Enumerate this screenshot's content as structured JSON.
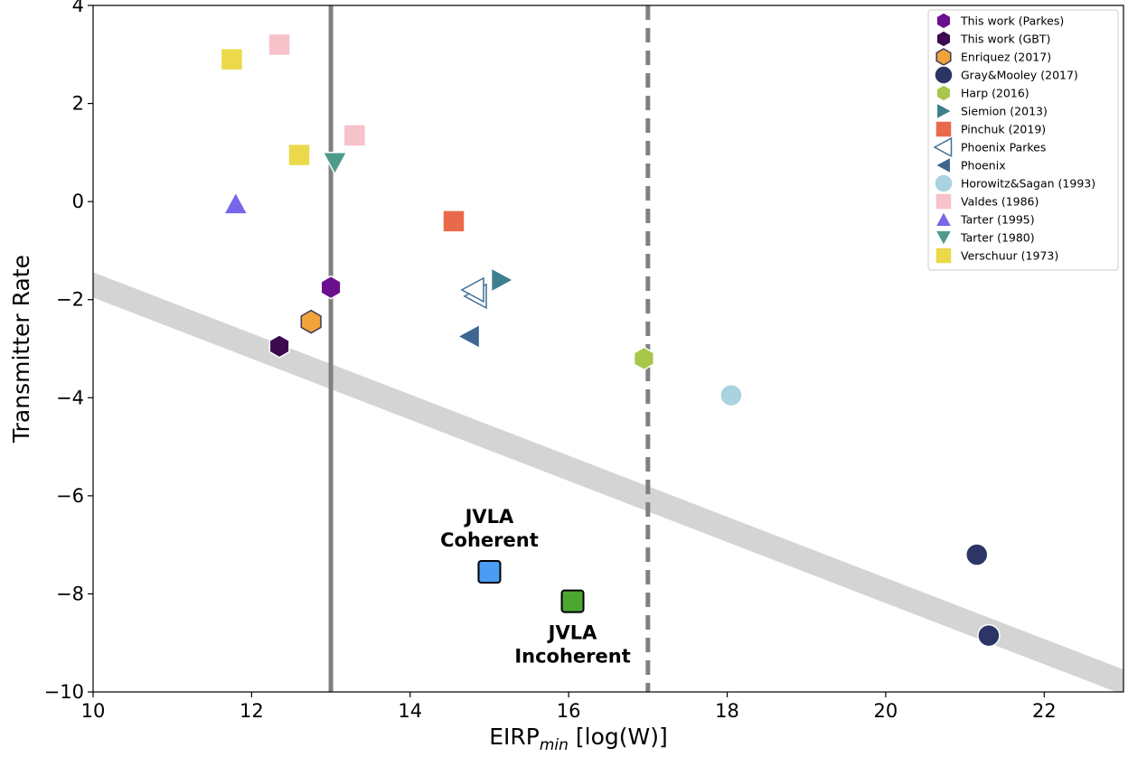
{
  "chart_data": {
    "type": "scatter",
    "xlabel": "EIRP",
    "xlabel_sub": "min",
    "xlabel_suffix": " [log(W)]",
    "ylabel": "Transmitter Rate",
    "xlim": [
      10,
      23
    ],
    "ylim": [
      -10,
      4
    ],
    "x_ticks": [
      10,
      12,
      14,
      16,
      18,
      20,
      22
    ],
    "x_tick_labels": [
      "10",
      "12",
      "14",
      "16",
      "18",
      "20",
      "22"
    ],
    "y_ticks": [
      -10,
      -8,
      -6,
      -4,
      -2,
      0,
      2,
      4
    ],
    "y_tick_labels": [
      "−10",
      "−8",
      "−6",
      "−4",
      "−2",
      "0",
      "2",
      "4"
    ],
    "grid": false,
    "legend_position": "top-right",
    "vertical_lines": [
      {
        "x": 13.0,
        "style": "solid",
        "color": "#808080"
      },
      {
        "x": 17.0,
        "style": "dashed",
        "color": "#808080"
      }
    ],
    "band": {
      "x1": 10,
      "y1": -1.7,
      "x2": 23,
      "y2": -9.8,
      "color": "#d4d4d4"
    },
    "series": [
      {
        "name": "This work (Parkes)",
        "marker": "hexagon",
        "color": "#6a0f8e",
        "edge": "#ffffff",
        "points": [
          [
            13.0,
            -1.75
          ]
        ]
      },
      {
        "name": "This work (GBT)",
        "marker": "hexagon",
        "color": "#3d0a4f",
        "edge": "#ffffff",
        "points": [
          [
            12.35,
            -2.95
          ]
        ]
      },
      {
        "name": "Enriquez (2017)",
        "marker": "hexagon",
        "color": "#f2a33a",
        "edge": "#3a3a5a",
        "points": [
          [
            12.75,
            -2.45
          ]
        ]
      },
      {
        "name": "Gray&Mooley (2017)",
        "marker": "circle",
        "color": "#2c3566",
        "edge": "#ffffff",
        "points": [
          [
            21.15,
            -7.2
          ],
          [
            21.3,
            -8.85
          ]
        ]
      },
      {
        "name": "Harp (2016)",
        "marker": "hexagon",
        "color": "#a8c64a",
        "edge": "#ffffff",
        "points": [
          [
            16.95,
            -3.2
          ]
        ]
      },
      {
        "name": "Siemion (2013)",
        "marker": "triangle-right",
        "color": "#3d7f8c",
        "edge": "#ffffff",
        "points": [
          [
            15.15,
            -1.6
          ]
        ]
      },
      {
        "name": "Pinchuk (2019)",
        "marker": "square",
        "color": "#e96a4b",
        "edge": "#ffffff",
        "points": [
          [
            14.55,
            -0.4
          ]
        ]
      },
      {
        "name": "Phoenix Parkes",
        "marker": "triangle-left-open",
        "color": "#ffffff",
        "edge": "#3f6e96",
        "points": [
          [
            14.8,
            -1.8
          ]
        ]
      },
      {
        "name": "Phoenix",
        "marker": "triangle-left",
        "color": "#3f6690",
        "edge": "#ffffff",
        "points": [
          [
            14.75,
            -2.75
          ]
        ]
      },
      {
        "name": "Horowitz&Sagan (1993)",
        "marker": "circle",
        "color": "#a9d3e0",
        "edge": "#ffffff",
        "points": [
          [
            18.05,
            -3.95
          ]
        ]
      },
      {
        "name": "Valdes (1986)",
        "marker": "square",
        "color": "#f7c2c9",
        "edge": "#ffffff",
        "points": [
          [
            12.35,
            3.2
          ],
          [
            13.3,
            1.35
          ]
        ]
      },
      {
        "name": "Tarter (1995)",
        "marker": "triangle-up",
        "color": "#7766ea",
        "edge": "#ffffff",
        "points": [
          [
            11.8,
            -0.05
          ]
        ]
      },
      {
        "name": "Tarter (1980)",
        "marker": "triangle-down",
        "color": "#4f9b8a",
        "edge": "#ffffff",
        "points": [
          [
            13.05,
            0.8
          ]
        ]
      },
      {
        "name": "Verschuur (1973)",
        "marker": "square",
        "color": "#ecd94b",
        "edge": "#ffffff",
        "points": [
          [
            11.75,
            2.9
          ],
          [
            12.6,
            0.95
          ]
        ]
      }
    ],
    "annotations": [
      {
        "lines": [
          "JVLA",
          "Coherent"
        ],
        "point": [
          15.0,
          -7.55
        ],
        "color": "#4a9cf5",
        "text_anchor": "above"
      },
      {
        "lines": [
          "JVLA",
          "Incoherent"
        ],
        "point": [
          16.05,
          -8.15
        ],
        "color": "#4ca632",
        "text_anchor": "below"
      }
    ]
  }
}
